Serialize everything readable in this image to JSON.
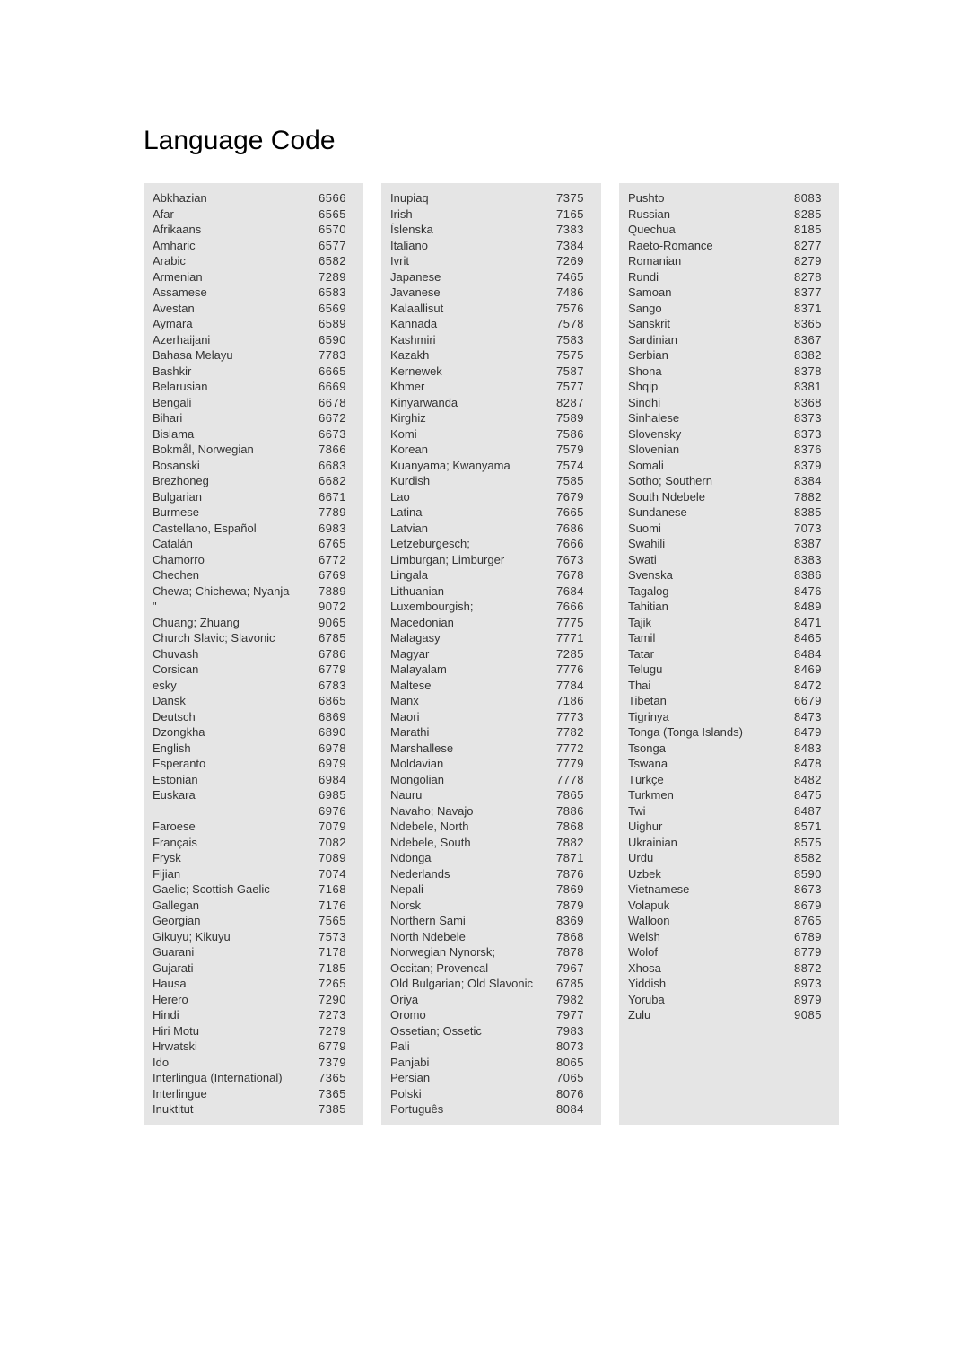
{
  "title": "Language Code",
  "columns": [
    [
      {
        "name": "Abkhazian",
        "code": "6566"
      },
      {
        "name": "Afar",
        "code": "6565"
      },
      {
        "name": "Afrikaans",
        "code": "6570"
      },
      {
        "name": "Amharic",
        "code": "6577"
      },
      {
        "name": "Arabic",
        "code": "6582"
      },
      {
        "name": "Armenian",
        "code": "7289"
      },
      {
        "name": "Assamese",
        "code": "6583"
      },
      {
        "name": "Avestan",
        "code": "6569"
      },
      {
        "name": "Aymara",
        "code": "6589"
      },
      {
        "name": "Azerhaijani",
        "code": "6590"
      },
      {
        "name": "Bahasa Melayu",
        "code": "7783"
      },
      {
        "name": "Bashkir",
        "code": "6665"
      },
      {
        "name": "Belarusian",
        "code": "6669"
      },
      {
        "name": "Bengali",
        "code": "6678"
      },
      {
        "name": "Bihari",
        "code": "6672"
      },
      {
        "name": "Bislama",
        "code": "6673"
      },
      {
        "name": "Bokmål, Norwegian",
        "code": "7866"
      },
      {
        "name": "Bosanski",
        "code": "6683"
      },
      {
        "name": "Brezhoneg",
        "code": "6682"
      },
      {
        "name": "Bulgarian",
        "code": "6671"
      },
      {
        "name": "Burmese",
        "code": "7789"
      },
      {
        "name": "Castellano, Español",
        "code": "6983"
      },
      {
        "name": "Catalán",
        "code": "6765"
      },
      {
        "name": "Chamorro",
        "code": "6772"
      },
      {
        "name": "Chechen",
        "code": "6769"
      },
      {
        "name": "Chewa; Chichewa; Nyanja",
        "code": "7889"
      },
      {
        "name": "\"",
        "code": "9072"
      },
      {
        "name": "Chuang; Zhuang",
        "code": "9065"
      },
      {
        "name": "Church Slavic; Slavonic",
        "code": "6785"
      },
      {
        "name": "Chuvash",
        "code": "6786"
      },
      {
        "name": "Corsican",
        "code": "6779"
      },
      {
        "name": "  esky",
        "code": "6783"
      },
      {
        "name": "Dansk",
        "code": "6865"
      },
      {
        "name": "Deutsch",
        "code": "6869"
      },
      {
        "name": "Dzongkha",
        "code": "6890"
      },
      {
        "name": "English",
        "code": "6978"
      },
      {
        "name": "Esperanto",
        "code": "6979"
      },
      {
        "name": "Estonian",
        "code": "6984"
      },
      {
        "name": "Euskara",
        "code": "6985"
      },
      {
        "name": "",
        "code": "6976"
      },
      {
        "name": "Faroese",
        "code": "7079"
      },
      {
        "name": "Français",
        "code": "7082"
      },
      {
        "name": "Frysk",
        "code": "7089"
      },
      {
        "name": "Fijian",
        "code": "7074"
      },
      {
        "name": "Gaelic; Scottish Gaelic",
        "code": "7168"
      },
      {
        "name": "Gallegan",
        "code": "7176"
      },
      {
        "name": "Georgian",
        "code": "7565"
      },
      {
        "name": "Gikuyu; Kikuyu",
        "code": "7573"
      },
      {
        "name": "Guarani",
        "code": "7178"
      },
      {
        "name": "Gujarati",
        "code": "7185"
      },
      {
        "name": "Hausa",
        "code": "7265"
      },
      {
        "name": "Herero",
        "code": "7290"
      },
      {
        "name": "Hindi",
        "code": "7273"
      },
      {
        "name": "Hiri Motu",
        "code": "7279"
      },
      {
        "name": "Hrwatski",
        "code": "6779"
      },
      {
        "name": "Ido",
        "code": "7379"
      },
      {
        "name": "Interlingua (International)",
        "code": "7365"
      },
      {
        "name": "Interlingue",
        "code": "7365"
      },
      {
        "name": "Inuktitut",
        "code": "7385"
      }
    ],
    [
      {
        "name": "Inupiaq",
        "code": "7375"
      },
      {
        "name": "Irish",
        "code": "7165"
      },
      {
        "name": "Íslenska",
        "code": "7383"
      },
      {
        "name": "Italiano",
        "code": "7384"
      },
      {
        "name": "Ivrit",
        "code": "7269"
      },
      {
        "name": "Japanese",
        "code": "7465"
      },
      {
        "name": "Javanese",
        "code": "7486"
      },
      {
        "name": "Kalaallisut",
        "code": "7576"
      },
      {
        "name": "Kannada",
        "code": "7578"
      },
      {
        "name": "Kashmiri",
        "code": "7583"
      },
      {
        "name": "Kazakh",
        "code": "7575"
      },
      {
        "name": "Kernewek",
        "code": "7587"
      },
      {
        "name": "Khmer",
        "code": "7577"
      },
      {
        "name": "Kinyarwanda",
        "code": "8287"
      },
      {
        "name": "Kirghiz",
        "code": "7589"
      },
      {
        "name": "Komi",
        "code": "7586"
      },
      {
        "name": "Korean",
        "code": "7579"
      },
      {
        "name": "Kuanyama; Kwanyama",
        "code": "7574"
      },
      {
        "name": "Kurdish",
        "code": "7585"
      },
      {
        "name": "Lao",
        "code": "7679"
      },
      {
        "name": "Latina",
        "code": "7665"
      },
      {
        "name": "Latvian",
        "code": "7686"
      },
      {
        "name": "Letzeburgesch;",
        "code": "7666"
      },
      {
        "name": "Limburgan; Limburger",
        "code": "7673"
      },
      {
        "name": "Lingala",
        "code": "7678"
      },
      {
        "name": "Lithuanian",
        "code": "7684"
      },
      {
        "name": "Luxembourgish;",
        "code": "7666"
      },
      {
        "name": "Macedonian",
        "code": "7775"
      },
      {
        "name": "Malagasy",
        "code": "7771"
      },
      {
        "name": "Magyar",
        "code": "7285"
      },
      {
        "name": "Malayalam",
        "code": "7776"
      },
      {
        "name": "Maltese",
        "code": "7784"
      },
      {
        "name": "Manx",
        "code": "7186"
      },
      {
        "name": "Maori",
        "code": "7773"
      },
      {
        "name": "Marathi",
        "code": "7782"
      },
      {
        "name": "Marshallese",
        "code": "7772"
      },
      {
        "name": "Moldavian",
        "code": "7779"
      },
      {
        "name": "Mongolian",
        "code": "7778"
      },
      {
        "name": "Nauru",
        "code": "7865"
      },
      {
        "name": "Navaho; Navajo",
        "code": "7886"
      },
      {
        "name": "Ndebele, North",
        "code": "7868"
      },
      {
        "name": "Ndebele, South",
        "code": "7882"
      },
      {
        "name": "Ndonga",
        "code": "7871"
      },
      {
        "name": "Nederlands",
        "code": "7876"
      },
      {
        "name": "Nepali",
        "code": "7869"
      },
      {
        "name": "Norsk",
        "code": "7879"
      },
      {
        "name": "Northern Sami",
        "code": "8369"
      },
      {
        "name": "North Ndebele",
        "code": "7868"
      },
      {
        "name": "Norwegian Nynorsk;",
        "code": "7878"
      },
      {
        "name": "Occitan; Provencal",
        "code": "7967"
      },
      {
        "name": "Old Bulgarian; Old Slavonic",
        "code": "6785"
      },
      {
        "name": "Oriya",
        "code": "7982"
      },
      {
        "name": "Oromo",
        "code": "7977"
      },
      {
        "name": "Ossetian; Ossetic",
        "code": "7983"
      },
      {
        "name": "Pali",
        "code": "8073"
      },
      {
        "name": "Panjabi",
        "code": "8065"
      },
      {
        "name": "Persian",
        "code": "7065"
      },
      {
        "name": "Polski",
        "code": "8076"
      },
      {
        "name": "Português",
        "code": "8084"
      }
    ],
    [
      {
        "name": "Pushto",
        "code": "8083"
      },
      {
        "name": "Russian",
        "code": "8285"
      },
      {
        "name": "Quechua",
        "code": "8185"
      },
      {
        "name": "Raeto-Romance",
        "code": "8277"
      },
      {
        "name": "Romanian",
        "code": "8279"
      },
      {
        "name": "Rundi",
        "code": "8278"
      },
      {
        "name": "Samoan",
        "code": "8377"
      },
      {
        "name": "Sango",
        "code": "8371"
      },
      {
        "name": "Sanskrit",
        "code": "8365"
      },
      {
        "name": "Sardinian",
        "code": "8367"
      },
      {
        "name": "Serbian",
        "code": "8382"
      },
      {
        "name": "Shona",
        "code": "8378"
      },
      {
        "name": "Shqip",
        "code": "8381"
      },
      {
        "name": "Sindhi",
        "code": "8368"
      },
      {
        "name": "Sinhalese",
        "code": "8373"
      },
      {
        "name": "Slovensky",
        "code": "8373"
      },
      {
        "name": "Slovenian",
        "code": "8376"
      },
      {
        "name": "Somali",
        "code": "8379"
      },
      {
        "name": "Sotho; Southern",
        "code": "8384"
      },
      {
        "name": "South Ndebele",
        "code": "7882"
      },
      {
        "name": "Sundanese",
        "code": "8385"
      },
      {
        "name": "Suomi",
        "code": "7073"
      },
      {
        "name": "Swahili",
        "code": "8387"
      },
      {
        "name": "Swati",
        "code": "8383"
      },
      {
        "name": "Svenska",
        "code": "8386"
      },
      {
        "name": "Tagalog",
        "code": "8476"
      },
      {
        "name": "Tahitian",
        "code": "8489"
      },
      {
        "name": "Tajik",
        "code": "8471"
      },
      {
        "name": "Tamil",
        "code": "8465"
      },
      {
        "name": "Tatar",
        "code": "8484"
      },
      {
        "name": "Telugu",
        "code": "8469"
      },
      {
        "name": "Thai",
        "code": "8472"
      },
      {
        "name": "Tibetan",
        "code": "6679"
      },
      {
        "name": "Tigrinya",
        "code": "8473"
      },
      {
        "name": "Tonga (Tonga Islands)",
        "code": "8479"
      },
      {
        "name": "Tsonga",
        "code": "8483"
      },
      {
        "name": "Tswana",
        "code": "8478"
      },
      {
        "name": "Türkçe",
        "code": "8482"
      },
      {
        "name": "Turkmen",
        "code": "8475"
      },
      {
        "name": "Twi",
        "code": "8487"
      },
      {
        "name": "Uighur",
        "code": "8571"
      },
      {
        "name": "Ukrainian",
        "code": "8575"
      },
      {
        "name": "Urdu",
        "code": "8582"
      },
      {
        "name": "Uzbek",
        "code": "8590"
      },
      {
        "name": "Vietnamese",
        "code": "8673"
      },
      {
        "name": "Volapuk",
        "code": "8679"
      },
      {
        "name": "Walloon",
        "code": "8765"
      },
      {
        "name": "Welsh",
        "code": "6789"
      },
      {
        "name": "Wolof",
        "code": "8779"
      },
      {
        "name": "Xhosa",
        "code": "8872"
      },
      {
        "name": "Yiddish",
        "code": "8973"
      },
      {
        "name": "Yoruba",
        "code": "8979"
      },
      {
        "name": "Zulu",
        "code": "9085"
      }
    ]
  ]
}
